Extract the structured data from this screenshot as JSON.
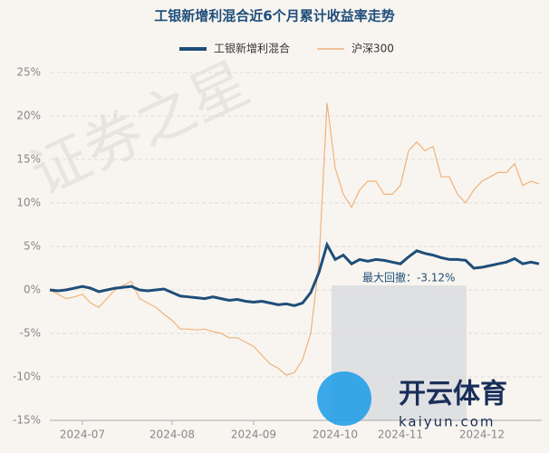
{
  "chart_data": {
    "type": "line",
    "title": "工银新增利混合近6个月累计收益率走势",
    "watermark": "证券之星",
    "logo_text": "开云体育",
    "logo_url": "kaiyun.com",
    "annotation": "最大回撤：-3.12%",
    "categories": [
      null,
      null,
      null,
      null,
      "2024-07",
      null,
      null,
      null,
      null,
      null,
      null,
      null,
      null,
      null,
      null,
      "2024-08",
      null,
      null,
      null,
      null,
      null,
      null,
      null,
      null,
      null,
      "2024-09",
      null,
      null,
      null,
      null,
      null,
      null,
      null,
      null,
      null,
      "2024-10",
      null,
      null,
      null,
      null,
      null,
      null,
      null,
      "2024-11",
      null,
      null,
      null,
      null,
      null,
      null,
      null,
      null,
      null,
      "2024-12",
      null,
      null,
      null,
      null,
      null,
      null,
      null
    ],
    "series": [
      {
        "name": "工银新增利混合",
        "color": "#1f4e79",
        "values": [
          0,
          -0.1,
          0,
          0.2,
          0.4,
          0.2,
          -0.2,
          0,
          0.2,
          0.3,
          0.4,
          0,
          -0.1,
          0,
          0.1,
          -0.3,
          -0.7,
          -0.8,
          -0.9,
          -1,
          -0.8,
          -1,
          -1.2,
          -1.1,
          -1.3,
          -1.4,
          -1.3,
          -1.5,
          -1.7,
          -1.6,
          -1.8,
          -1.5,
          -0.3,
          2,
          5.2,
          3.5,
          4,
          3,
          3.5,
          3.3,
          3.5,
          3.4,
          3.2,
          3,
          3.8,
          4.5,
          4.2,
          4,
          3.7,
          3.5,
          3.5,
          3.4,
          2.5,
          2.6,
          2.8,
          3,
          3.2,
          3.6,
          3,
          3.2,
          3
        ]
      },
      {
        "name": "沪深300",
        "color": "#f0b27a",
        "values": [
          0,
          -0.5,
          -1,
          -0.8,
          -0.5,
          -1.5,
          -2,
          -1,
          0,
          0.5,
          1,
          -1,
          -1.5,
          -2,
          -2.8,
          -3.5,
          -4.5,
          -4.5,
          -4.6,
          -4.5,
          -4.8,
          -5,
          -5.5,
          -5.5,
          -6,
          -6.5,
          -7.5,
          -8.5,
          -9,
          -9.8,
          -9.5,
          -8,
          -5,
          3,
          21.5,
          14,
          11,
          9.5,
          11.5,
          12.5,
          12.5,
          11,
          11,
          12,
          16,
          17,
          16,
          16.5,
          13,
          13,
          11,
          10,
          11.5,
          12.5,
          13,
          13.5,
          13.5,
          14.5,
          12,
          12.5,
          12.2
        ]
      }
    ],
    "ylim": [
      -15,
      25
    ],
    "yticks": [
      {
        "value": -15,
        "label": "-15%"
      },
      {
        "value": -10,
        "label": "-10%"
      },
      {
        "value": -5,
        "label": "-5%"
      },
      {
        "value": 0,
        "label": "0%"
      },
      {
        "value": 5,
        "label": "5%"
      },
      {
        "value": 10,
        "label": "10%"
      },
      {
        "value": 15,
        "label": "15%"
      },
      {
        "value": 20,
        "label": "20%"
      },
      {
        "value": 25,
        "label": "25%"
      }
    ],
    "grid": true
  }
}
